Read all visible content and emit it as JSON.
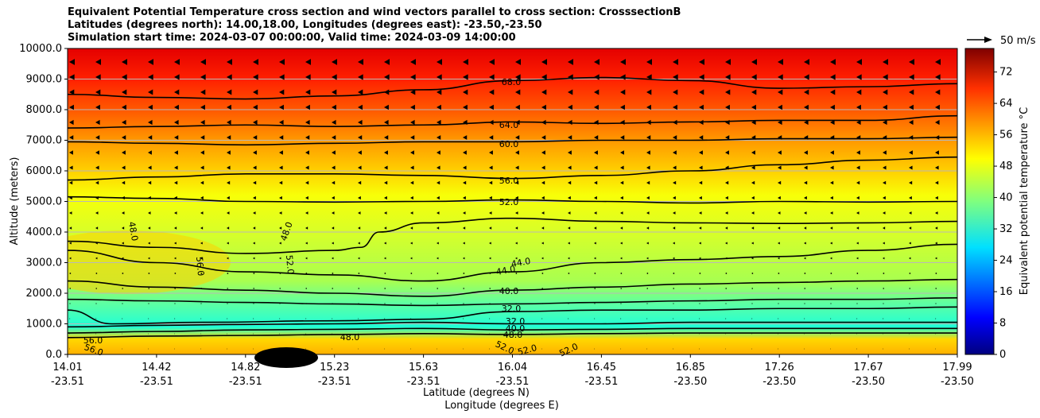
{
  "chart_data": {
    "type": "contour",
    "title": [
      "Equivalent Potential Temperature cross section and wind vectors parallel to cross section: CrosssectionB",
      "Latitudes (degrees north): 14.00,18.00, Longitudes (degrees east): -23.50,-23.50",
      "Simulation start time: 2024-03-07 00:00:00, Valid time: 2024-03-09 14:00:00"
    ],
    "ylabel": "Altitude (meters)",
    "xlabel_lat": "Latitude (degrees N)",
    "xlabel_lon": "Longitude (degrees E)",
    "ylim": [
      0,
      10000
    ],
    "y_ticks": [
      "0.0",
      "1000.0",
      "2000.0",
      "3000.0",
      "4000.0",
      "5000.0",
      "6000.0",
      "7000.0",
      "8000.0",
      "9000.0",
      "10000.0"
    ],
    "x_ticks": [
      {
        "lat": "14.01",
        "lon": "-23.51"
      },
      {
        "lat": "14.42",
        "lon": "-23.51"
      },
      {
        "lat": "14.82",
        "lon": "-23.51"
      },
      {
        "lat": "15.23",
        "lon": "-23.51"
      },
      {
        "lat": "15.63",
        "lon": "-23.51"
      },
      {
        "lat": "16.04",
        "lon": "-23.51"
      },
      {
        "lat": "16.45",
        "lon": "-23.51"
      },
      {
        "lat": "16.85",
        "lon": "-23.50"
      },
      {
        "lat": "17.26",
        "lon": "-23.50"
      },
      {
        "lat": "17.67",
        "lon": "-23.50"
      },
      {
        "lat": "17.99",
        "lon": "-23.50"
      }
    ],
    "colorbar": {
      "label": "Equivalent potential temperature °C",
      "range": [
        0,
        78
      ],
      "ticks": [
        "0",
        "8",
        "16",
        "24",
        "32",
        "40",
        "48",
        "56",
        "64",
        "72"
      ]
    },
    "wind_legend": "50 m/s",
    "contour_labels": [
      "68.0",
      "64.0",
      "60.0",
      "56.0",
      "52.0",
      "48.0",
      "48.0",
      "56.0",
      "52.0",
      "44.0",
      "44.0",
      "40.0",
      "32.0",
      "32.0",
      "40.0",
      "48.0",
      "48.0",
      "56.0",
      "56.0",
      "52.0",
      "52.0",
      "52.0"
    ],
    "contours": [
      {
        "level": 68,
        "x": [
          0,
          0.1,
          0.2,
          0.3,
          0.4,
          0.5,
          0.6,
          0.7,
          0.8,
          0.9,
          1
        ],
        "alt": [
          8500,
          8400,
          8350,
          8450,
          8650,
          8950,
          9050,
          8950,
          8700,
          8750,
          8850
        ]
      },
      {
        "level": 64,
        "x": [
          0,
          0.1,
          0.2,
          0.3,
          0.4,
          0.5,
          0.6,
          0.7,
          0.8,
          0.9,
          1
        ],
        "alt": [
          7400,
          7450,
          7500,
          7450,
          7500,
          7600,
          7550,
          7600,
          7650,
          7650,
          7800
        ]
      },
      {
        "level": 60,
        "x": [
          0,
          0.1,
          0.2,
          0.3,
          0.4,
          0.5,
          0.6,
          0.7,
          0.8,
          0.9,
          1
        ],
        "alt": [
          6950,
          6900,
          6850,
          6900,
          6950,
          6950,
          7000,
          7000,
          7050,
          7050,
          7100
        ]
      },
      {
        "level": 56,
        "x": [
          0,
          0.1,
          0.2,
          0.3,
          0.4,
          0.5,
          0.6,
          0.7,
          0.8,
          0.9,
          1
        ],
        "alt": [
          5700,
          5800,
          5900,
          5900,
          5850,
          5750,
          5850,
          6000,
          6200,
          6350,
          6450
        ]
      },
      {
        "level": 52,
        "x": [
          0,
          0.1,
          0.2,
          0.3,
          0.4,
          0.5,
          0.6,
          0.7,
          0.8,
          0.9,
          1
        ],
        "alt": [
          5150,
          5100,
          5000,
          4980,
          5000,
          5050,
          5000,
          4950,
          5000,
          4980,
          5000
        ]
      },
      {
        "level": 48,
        "x": [
          0,
          0.1,
          0.2,
          0.3,
          0.33,
          0.35,
          0.4,
          0.5,
          0.6,
          0.7,
          0.8,
          0.9,
          1
        ],
        "alt": [
          3700,
          3500,
          3300,
          3400,
          3500,
          4000,
          4300,
          4450,
          4350,
          4300,
          4280,
          4300,
          4350
        ]
      },
      {
        "level": 44,
        "x": [
          0,
          0.1,
          0.2,
          0.3,
          0.4,
          0.5,
          0.6,
          0.7,
          0.8,
          0.9,
          1
        ],
        "alt": [
          3400,
          3000,
          2700,
          2600,
          2400,
          2700,
          3000,
          3100,
          3200,
          3400,
          3600
        ]
      },
      {
        "level": 40,
        "x": [
          0,
          0.1,
          0.2,
          0.3,
          0.4,
          0.5,
          0.6,
          0.7,
          0.8,
          0.9,
          1
        ],
        "alt": [
          2400,
          2200,
          2100,
          2000,
          1900,
          2100,
          2200,
          2300,
          2350,
          2400,
          2450
        ]
      },
      {
        "level": 36,
        "x": [
          0,
          0.1,
          0.2,
          0.3,
          0.4,
          0.5,
          0.6,
          0.7,
          0.8,
          0.9,
          1
        ],
        "alt": [
          1800,
          1750,
          1700,
          1650,
          1600,
          1650,
          1700,
          1750,
          1800,
          1800,
          1850
        ]
      },
      {
        "level": 32,
        "x": [
          0,
          0.05,
          0.15,
          0.3,
          0.4,
          0.5,
          0.6,
          0.7,
          0.8,
          0.9,
          1
        ],
        "alt": [
          1450,
          1000,
          1050,
          1100,
          1150,
          1400,
          1450,
          1450,
          1500,
          1500,
          1550
        ]
      },
      {
        "level": 28,
        "x": [
          0,
          0.1,
          0.2,
          0.3,
          0.4,
          0.5,
          0.6,
          0.7,
          0.8,
          0.9,
          1
        ],
        "alt": [
          900,
          950,
          980,
          1000,
          1050,
          1000,
          1000,
          1050,
          1050,
          1050,
          1050
        ]
      },
      {
        "level": 24,
        "x": [
          0,
          0.1,
          0.2,
          0.3,
          0.4,
          0.5,
          0.6,
          0.7,
          0.8,
          0.9,
          1
        ],
        "alt": [
          700,
          750,
          800,
          820,
          850,
          800,
          820,
          850,
          850,
          850,
          850
        ]
      },
      {
        "level": 20,
        "x": [
          0,
          0.1,
          0.2,
          0.3,
          0.4,
          0.5,
          0.6,
          0.7,
          0.8,
          0.9,
          1
        ],
        "alt": [
          550,
          600,
          620,
          650,
          680,
          650,
          680,
          700,
          700,
          700,
          700
        ]
      }
    ],
    "wind_u_top": -4
  }
}
